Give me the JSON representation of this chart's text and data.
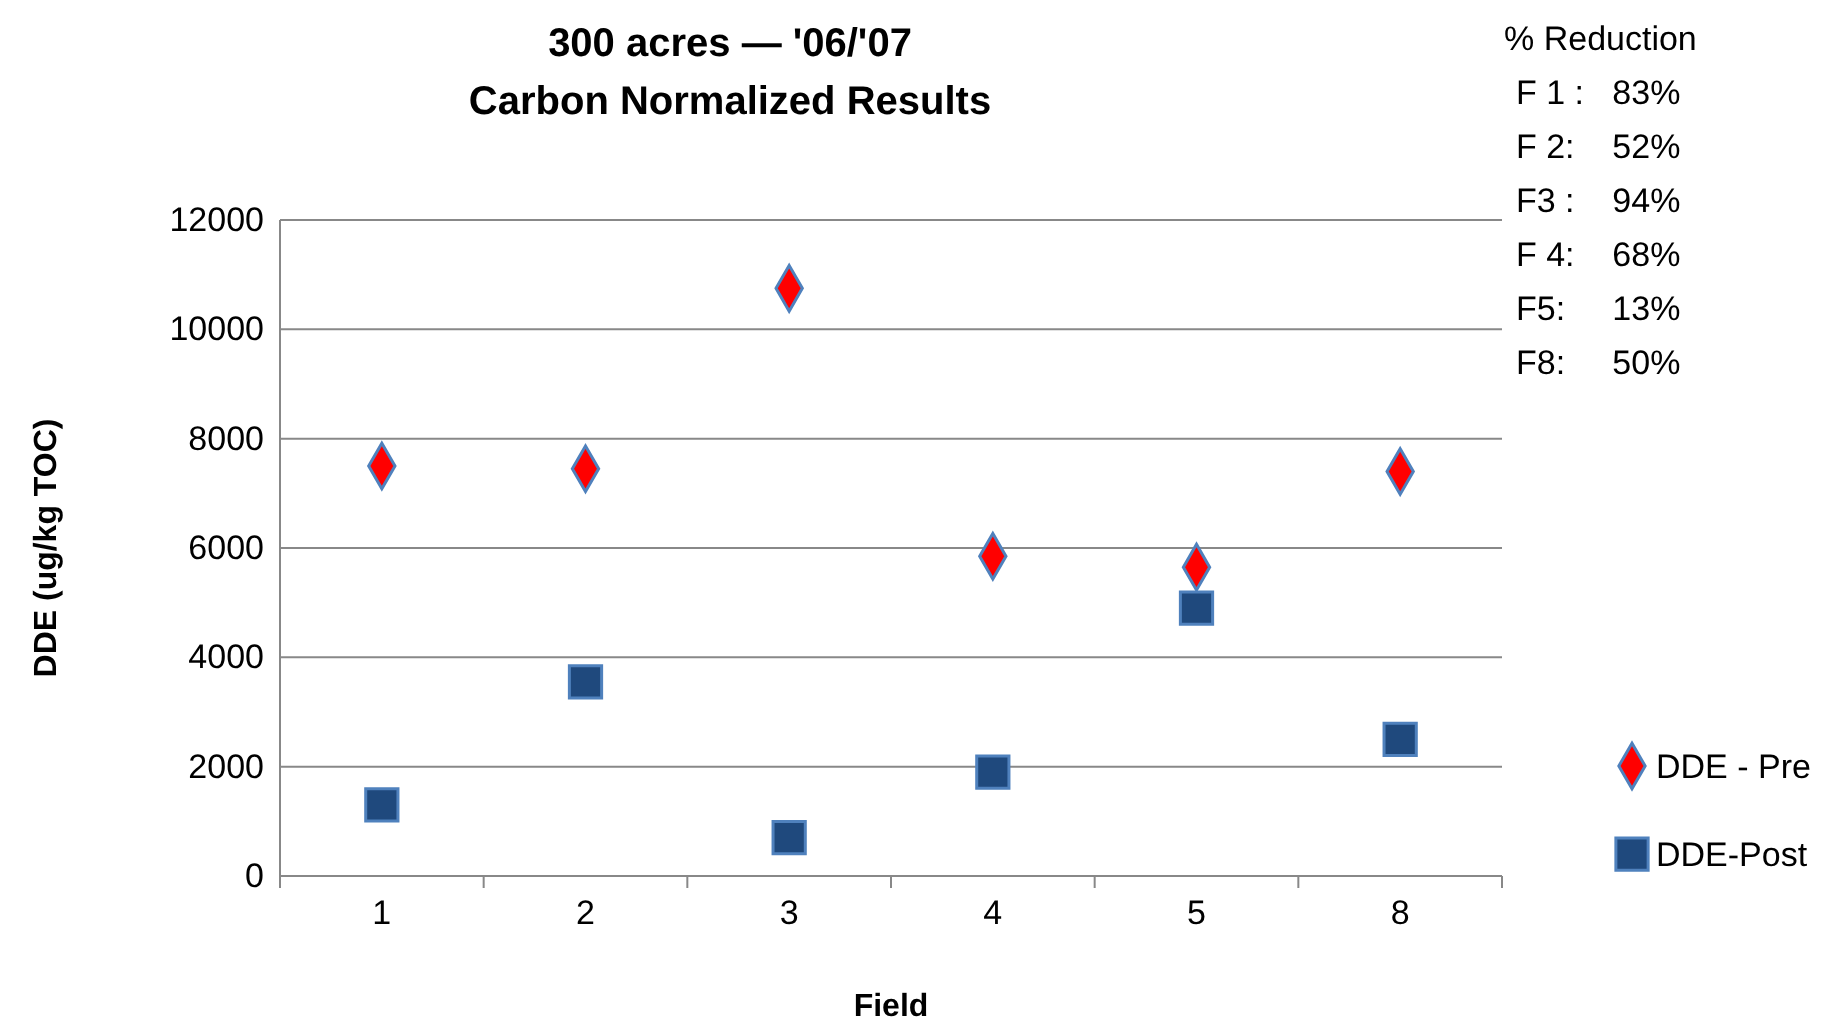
{
  "chart_data": {
    "type": "scatter",
    "title": "300 acres — '06/'07",
    "subtitle": "Carbon Normalized Results",
    "xlabel": "Field",
    "ylabel": "DDE (ug/kg TOC)",
    "categories": [
      "1",
      "2",
      "3",
      "4",
      "5",
      "8"
    ],
    "series": [
      {
        "name": "DDE - Pre",
        "color": "#ff0000",
        "marker": "diamond",
        "values": [
          7500,
          7450,
          10750,
          5850,
          5650,
          7400
        ]
      },
      {
        "name": "DDE-Post",
        "color": "#1f497d",
        "marker": "square",
        "values": [
          1300,
          3550,
          700,
          1900,
          4900,
          2500
        ]
      }
    ],
    "ylim": [
      0,
      12000
    ],
    "yticks": [
      0,
      2000,
      4000,
      6000,
      8000,
      10000,
      12000
    ],
    "grid": "y",
    "legend": "right",
    "annotations": [
      "% Reduction",
      "F 1 :   83%",
      "F 2:    52%",
      "F3 :    94%",
      "F 4:    68%",
      "F5:     13%",
      "F8:     50%"
    ]
  }
}
